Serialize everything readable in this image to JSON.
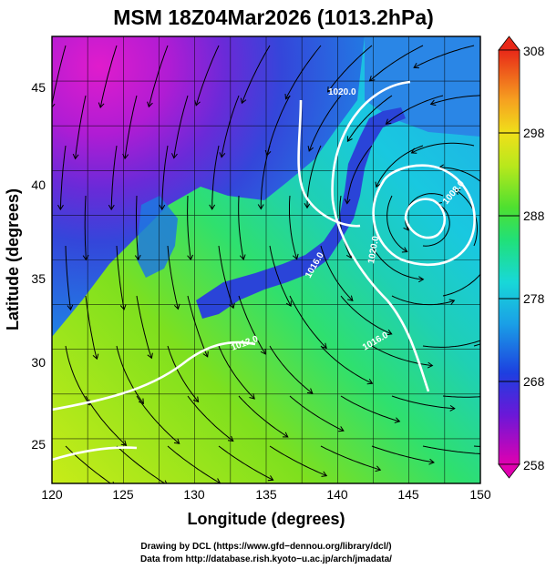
{
  "title": "MSM 18Z04Mar2026 (1013.2hPa)",
  "x_axis": {
    "label": "Longitude (degrees)",
    "ticks": [
      "120",
      "125",
      "130",
      "135",
      "140",
      "145",
      "150"
    ]
  },
  "y_axis": {
    "label": "Latitude  (degrees)",
    "ticks": [
      "25",
      "30",
      "35",
      "40",
      "45"
    ]
  },
  "colorbar": {
    "ticks": [
      "308",
      "298",
      "288",
      "278",
      "268",
      "258"
    ],
    "min": 258,
    "max": 308
  },
  "contour_labels": [
    "1020.0",
    "1016.0",
    "1012.0",
    "1016.0",
    "1020.0",
    "1008.0"
  ],
  "credits": {
    "line1": "Drawing by DCL (https://www.gfd−dennou.org/library/dcl/)",
    "line2": "Data from http://database.rish.kyoto−u.ac.jp/arch/jmadata/"
  },
  "colors": {
    "ocean_warm": "#b7e81a",
    "ocean_mid": "#2fe07a",
    "ocean_cool": "#19d2e4",
    "land_cold": "#2a3fd8",
    "land_coldest": "#d018c8",
    "contour": "#ffffff",
    "streamline": "#000000"
  }
}
